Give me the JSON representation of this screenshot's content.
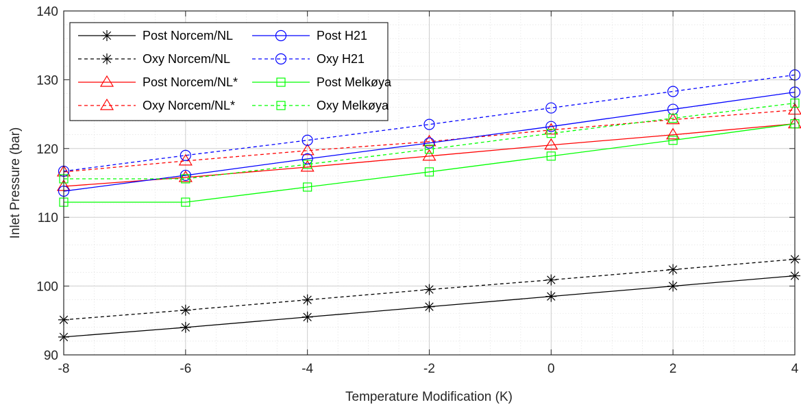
{
  "chart_data": {
    "type": "line",
    "title": "",
    "xlabel": "Temperature Modification (K)",
    "ylabel": "Inlet Pressure (bar)",
    "xlim": [
      -8,
      4
    ],
    "ylim": [
      90,
      140
    ],
    "x_ticks": [
      -8,
      -6,
      -4,
      -2,
      0,
      2,
      4
    ],
    "y_ticks": [
      90,
      100,
      110,
      120,
      130,
      140
    ],
    "grid": true,
    "minor_grid": true,
    "legend_position": "top-left",
    "x": [
      -8,
      -6,
      -4,
      -2,
      0,
      2,
      4
    ],
    "series": [
      {
        "name": "Post Norcem/NL",
        "color": "#000000",
        "dash": "solid",
        "marker": "asterisk",
        "values": [
          92.6,
          94.0,
          95.5,
          97.0,
          98.5,
          100.0,
          101.5
        ]
      },
      {
        "name": "Oxy Norcem/NL",
        "color": "#000000",
        "dash": "dashed",
        "marker": "asterisk",
        "values": [
          95.1,
          96.5,
          98.0,
          99.5,
          100.9,
          102.4,
          103.9
        ]
      },
      {
        "name": "Post Norcem/NL*",
        "color": "#ff0000",
        "dash": "solid",
        "marker": "triangle",
        "values": [
          114.5,
          115.8,
          117.3,
          118.9,
          120.5,
          122.0,
          123.6
        ]
      },
      {
        "name": "Oxy Norcem/NL*",
        "color": "#ff0000",
        "dash": "dashed",
        "marker": "triangle",
        "values": [
          116.6,
          118.2,
          119.7,
          121.0,
          122.7,
          124.2,
          125.6
        ]
      },
      {
        "name": "Post H21",
        "color": "#0000ff",
        "dash": "solid",
        "marker": "circle",
        "values": [
          113.8,
          116.1,
          118.5,
          120.8,
          123.2,
          125.7,
          128.2
        ]
      },
      {
        "name": "Oxy H21",
        "color": "#0000ff",
        "dash": "dashed",
        "marker": "circle",
        "values": [
          116.7,
          119.0,
          121.2,
          123.5,
          125.9,
          128.3,
          130.7
        ]
      },
      {
        "name": "Post Melkøya",
        "color": "#00ff00",
        "dash": "solid",
        "marker": "square",
        "values": [
          112.2,
          112.2,
          114.4,
          116.6,
          118.9,
          121.2,
          123.6
        ]
      },
      {
        "name": "Oxy Melkøya",
        "color": "#00ff00",
        "dash": "dashed",
        "marker": "square",
        "values": [
          115.6,
          115.6,
          117.7,
          119.9,
          122.2,
          124.4,
          126.6
        ]
      }
    ]
  }
}
